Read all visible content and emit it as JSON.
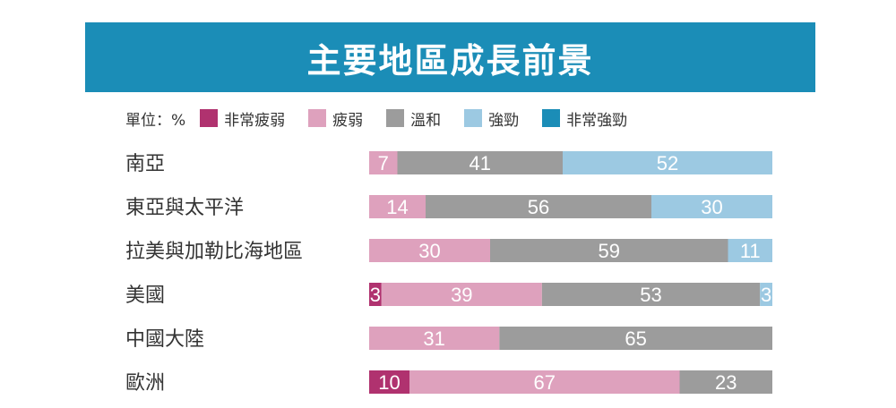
{
  "title": "主要地區成長前景",
  "unit_label": "單位：%",
  "colors": {
    "banner": "#1b8db7",
    "非常疲弱": "#b0326f",
    "疲弱": "#dea1bd",
    "溫和": "#9c9c9c",
    "強勁": "#9cc9e2",
    "非常強勁": "#1b8db7"
  },
  "chart_data": {
    "type": "bar",
    "orientation": "horizontal",
    "stacked": true,
    "title": "主要地區成長前景",
    "unit": "%",
    "legend_position": "top",
    "categories": [
      "南亞",
      "東亞與太平洋",
      "拉美與加勒比海地區",
      "美國",
      "中國大陸",
      "歐洲"
    ],
    "series": [
      {
        "name": "非常疲弱",
        "values": [
          0,
          0,
          0,
          3,
          0,
          10
        ]
      },
      {
        "name": "疲弱",
        "values": [
          7,
          14,
          30,
          39,
          31,
          67
        ]
      },
      {
        "name": "溫和",
        "values": [
          41,
          56,
          59,
          53,
          65,
          23
        ]
      },
      {
        "name": "強勁",
        "values": [
          52,
          30,
          11,
          3,
          0,
          0
        ]
      },
      {
        "name": "非常強勁",
        "values": [
          0,
          0,
          0,
          0,
          0,
          0
        ]
      }
    ]
  }
}
